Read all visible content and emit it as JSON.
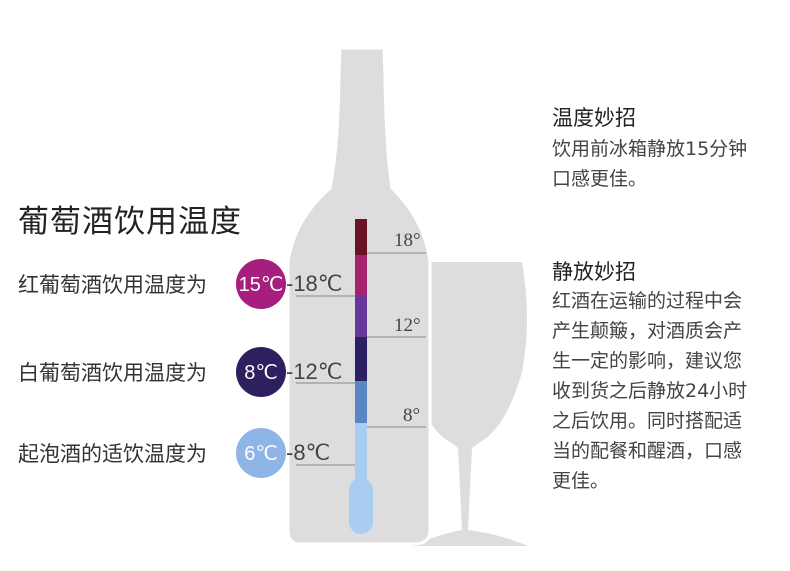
{
  "title": "葡萄酒饮用温度",
  "colors": {
    "bottle": "#dddddd",
    "red_badge": "#a61e7e",
    "white_badge": "#2e1f5e",
    "sparkling_badge": "#8fb5e6"
  },
  "temperature_rows": [
    {
      "label": "红葡萄酒饮用温度为",
      "low": "15℃",
      "high": "-18℃"
    },
    {
      "label": "白葡萄酒饮用温度为",
      "low": "8℃",
      "high": "-12℃"
    },
    {
      "label": "起泡酒的适饮温度为",
      "low": "6℃",
      "high": "-8℃"
    }
  ],
  "thermometer_ticks": [
    "18°",
    "12°",
    "8°"
  ],
  "tips": [
    {
      "title": "温度妙招",
      "lines": [
        "饮用前冰箱静放15分钟",
        "口感更佳。"
      ]
    },
    {
      "title": "静放妙招",
      "lines": [
        "红酒在运输的过程中会",
        "产生颠簸，对酒质会产",
        "生一定的影响，建议您",
        "收到货之后静放24小时",
        "之后饮用。同时搭配适",
        "当的配餐和醒酒，口感",
        "更佳。"
      ]
    }
  ]
}
